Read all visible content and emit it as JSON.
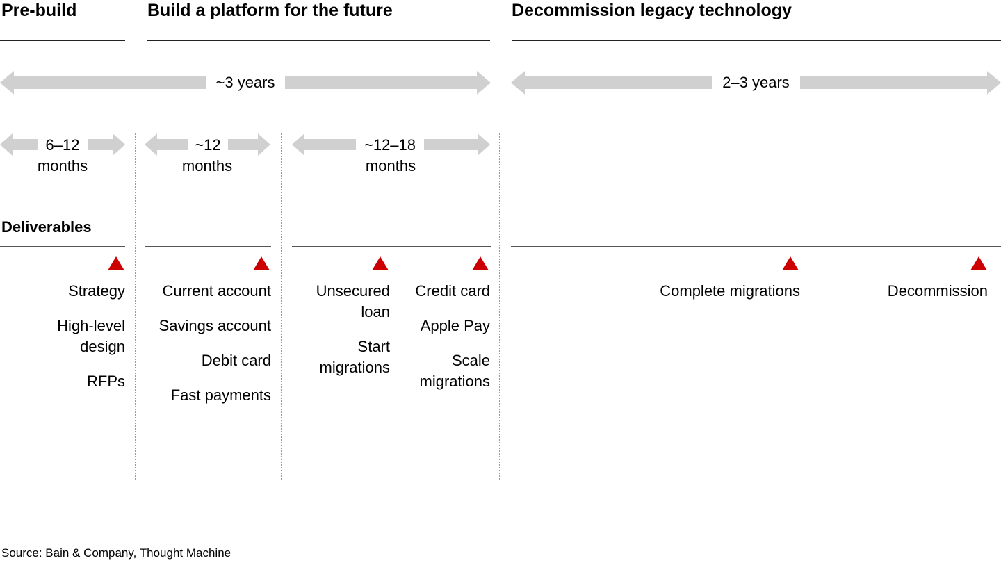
{
  "phases": {
    "prebuild": "Pre-build",
    "build": "Build a platform for the future",
    "decommission": "Decommission legacy technology"
  },
  "durations": {
    "build_total": "~3 years",
    "decommission_total": "2–3 years",
    "prebuild": {
      "top": "6–12",
      "bottom": "months"
    },
    "build_phase_1": {
      "top": "~12",
      "bottom": "months"
    },
    "build_phase_2": {
      "top": "~12–18",
      "bottom": "months"
    }
  },
  "deliverables_heading": "Deliverables",
  "deliverables": {
    "prebuild": [
      "Strategy",
      "High-level design",
      "RFPs"
    ],
    "build_phase_1": [
      "Current account",
      "Savings account",
      "Debit card",
      "Fast payments"
    ],
    "build_phase_2a": [
      "Unsecured loan",
      "Start migrations"
    ],
    "build_phase_2b": [
      "Credit card",
      "Apple Pay",
      "Scale migrations"
    ],
    "decommission_a": [
      "Complete migrations"
    ],
    "decommission_b": [
      "Decommission"
    ]
  },
  "colors": {
    "arrow": "#d0d0d0",
    "marker": "#cc0000",
    "rule": "#222222",
    "divider": "#9a9a9a"
  },
  "source": "Source: Bain & Company, Thought Machine"
}
